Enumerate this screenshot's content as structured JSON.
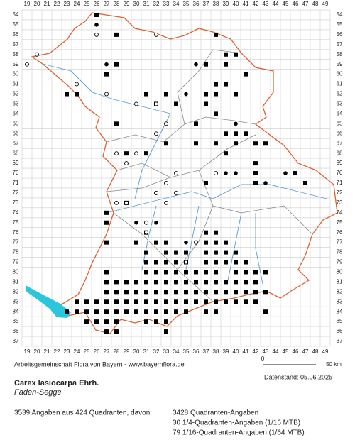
{
  "grid": {
    "columns": [
      19,
      20,
      21,
      22,
      23,
      24,
      25,
      26,
      27,
      28,
      29,
      30,
      31,
      32,
      33,
      34,
      35,
      36,
      37,
      38,
      39,
      40,
      41,
      42,
      43,
      44,
      45,
      46,
      47,
      48,
      49
    ],
    "rows": [
      54,
      55,
      56,
      57,
      58,
      59,
      60,
      61,
      62,
      63,
      64,
      65,
      66,
      67,
      68,
      69,
      70,
      71,
      72,
      73,
      74,
      75,
      76,
      77,
      78,
      79,
      80,
      81,
      82,
      83,
      84,
      85,
      86,
      87
    ]
  },
  "markers": {
    "square_runs": [
      [
        78,
        31,
        31
      ],
      [
        78,
        33,
        35
      ],
      [
        78,
        37,
        40
      ],
      [
        79,
        31,
        35
      ],
      [
        79,
        37,
        41
      ],
      [
        80,
        27,
        27
      ],
      [
        80,
        31,
        38
      ],
      [
        80,
        40,
        43
      ],
      [
        81,
        27,
        42
      ],
      [
        82,
        27,
        43
      ],
      [
        83,
        24,
        42
      ],
      [
        84,
        23,
        35
      ],
      [
        84,
        37,
        38
      ],
      [
        84,
        43,
        43
      ],
      [
        85,
        25,
        28
      ],
      [
        85,
        31,
        33
      ],
      [
        86,
        27,
        28
      ],
      [
        86,
        33,
        33
      ],
      [
        77,
        32,
        33
      ],
      [
        77,
        37,
        39
      ],
      [
        76,
        37,
        38
      ]
    ],
    "squares": [
      [
        26,
        54
      ],
      [
        28,
        56
      ],
      [
        38,
        56
      ],
      [
        39,
        58
      ],
      [
        40,
        58
      ],
      [
        37,
        59
      ],
      [
        39,
        59
      ],
      [
        41,
        60
      ],
      [
        38,
        61
      ],
      [
        39,
        61
      ],
      [
        37,
        62
      ],
      [
        38,
        62
      ],
      [
        40,
        62
      ],
      [
        31,
        62
      ],
      [
        33,
        62
      ],
      [
        32,
        63
      ],
      [
        34,
        63
      ],
      [
        37,
        63
      ],
      [
        38,
        64
      ],
      [
        36,
        65
      ],
      [
        28,
        65
      ],
      [
        39,
        66
      ],
      [
        40,
        66
      ],
      [
        41,
        66
      ],
      [
        38,
        67
      ],
      [
        40,
        67
      ],
      [
        42,
        67
      ],
      [
        43,
        67
      ],
      [
        29,
        68
      ],
      [
        31,
        68
      ],
      [
        33,
        67
      ],
      [
        42,
        69
      ],
      [
        42,
        70
      ],
      [
        47,
        71
      ],
      [
        42,
        71
      ],
      [
        46,
        70
      ],
      [
        37,
        71
      ],
      [
        29,
        73
      ],
      [
        27,
        74
      ],
      [
        27,
        75
      ],
      [
        27,
        77
      ],
      [
        30,
        77
      ],
      [
        31,
        76
      ],
      [
        24,
        62
      ],
      [
        23,
        62
      ],
      [
        27,
        60
      ],
      [
        28,
        59
      ],
      [
        36,
        67
      ],
      [
        39,
        68
      ]
    ],
    "dots": [
      [
        26,
        55
      ],
      [
        27,
        59
      ],
      [
        36,
        59
      ],
      [
        35,
        62
      ],
      [
        40,
        65
      ],
      [
        43,
        67
      ],
      [
        39,
        70
      ],
      [
        40,
        70
      ],
      [
        45,
        70
      ],
      [
        43,
        71
      ],
      [
        32,
        72
      ],
      [
        30,
        75
      ],
      [
        32,
        75
      ],
      [
        35,
        77
      ]
    ],
    "circles": [
      [
        20,
        58
      ],
      [
        19,
        59
      ],
      [
        26,
        56
      ],
      [
        32,
        56
      ],
      [
        24,
        61
      ],
      [
        27,
        62
      ],
      [
        30,
        63
      ],
      [
        32,
        63
      ],
      [
        33,
        65
      ],
      [
        32,
        66
      ],
      [
        28,
        68
      ],
      [
        29,
        69
      ],
      [
        30,
        68
      ],
      [
        34,
        70
      ],
      [
        38,
        70
      ],
      [
        33,
        71
      ],
      [
        32,
        72
      ],
      [
        34,
        72
      ],
      [
        29,
        73
      ],
      [
        28,
        73
      ],
      [
        33,
        73
      ],
      [
        31,
        75
      ],
      [
        31,
        76
      ],
      [
        36,
        77
      ],
      [
        35,
        79
      ]
    ]
  },
  "footer": {
    "credit": "Arbeitsgemeinschaft Flora von Bayern - www.bayernflora.de",
    "scale_start": "0",
    "scale_end": "50 km",
    "date": "Datenstand: 05.06.2025",
    "species": "Carex lasiocarpa Ehrh.",
    "common_name": "Faden-Segge",
    "summary": "3539 Angaben aus 424 Quadranten, davon:",
    "counts": [
      "3428 Quadranten-Angaben",
      "30 1/4-Quadranten-Angaben (1/16 MTB)",
      "79 1/16-Quadranten-Angaben (1/64 MTB)"
    ]
  }
}
